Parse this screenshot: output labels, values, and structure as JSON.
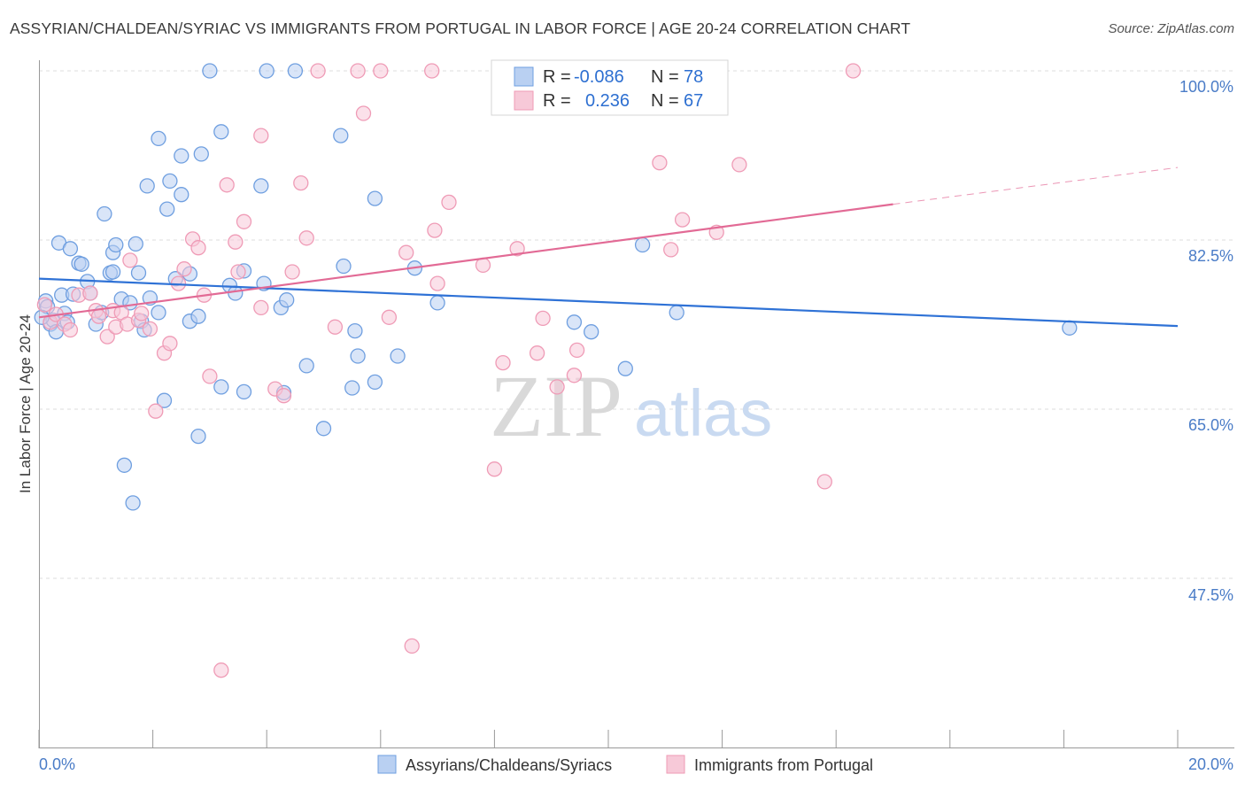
{
  "chart_data": {
    "type": "scatter",
    "title": "ASSYRIAN/CHALDEAN/SYRIAC VS IMMIGRANTS FROM PORTUGAL IN LABOR FORCE | AGE 20-24 CORRELATION CHART",
    "source": "Source: ZipAtlas.com",
    "ylabel": "In Labor Force | Age 20-24",
    "xlim": [
      0,
      20
    ],
    "ylim": [
      30,
      101.5
    ],
    "x_tick_labels": [
      "0.0%",
      "20.0%"
    ],
    "y_ticks": [
      {
        "value": 100.0,
        "label": "100.0%"
      },
      {
        "value": 82.5,
        "label": "82.5%"
      },
      {
        "value": 65.0,
        "label": "65.0%"
      },
      {
        "value": 47.5,
        "label": "47.5%"
      }
    ],
    "watermark": {
      "zip": "ZIP",
      "atlas": "atlas"
    },
    "series": [
      {
        "name": "Assyrians/Chaldeans/Syriacs",
        "color": "#6f9fe0",
        "fill": "#b9d0f2",
        "line_color": "#2f72d6",
        "r_label": "R =",
        "r_value": "-0.086",
        "n_label": "N =",
        "n_value": "78",
        "trend": {
          "x0": 0,
          "y0": 78.5,
          "x1": 20,
          "y1": 73.6
        },
        "points": [
          [
            0.12,
            76.2
          ],
          [
            0.15,
            75.6
          ],
          [
            0.2,
            73.8
          ],
          [
            0.25,
            74.2
          ],
          [
            0.3,
            73.0
          ],
          [
            0.35,
            82.2
          ],
          [
            0.4,
            76.8
          ],
          [
            0.45,
            74.9
          ],
          [
            0.5,
            74.0
          ],
          [
            0.55,
            81.6
          ],
          [
            0.7,
            80.1
          ],
          [
            0.75,
            80.0
          ],
          [
            0.85,
            78.2
          ],
          [
            0.9,
            77.0
          ],
          [
            1.0,
            73.8
          ],
          [
            1.1,
            75.0
          ],
          [
            1.15,
            85.2
          ],
          [
            1.25,
            79.1
          ],
          [
            1.3,
            81.2
          ],
          [
            1.3,
            79.2
          ],
          [
            1.35,
            82.0
          ],
          [
            1.45,
            76.4
          ],
          [
            1.5,
            59.2
          ],
          [
            1.6,
            76.0
          ],
          [
            1.65,
            55.3
          ],
          [
            1.7,
            82.1
          ],
          [
            1.75,
            79.1
          ],
          [
            1.8,
            74.1
          ],
          [
            1.85,
            73.2
          ],
          [
            1.9,
            88.1
          ],
          [
            2.1,
            75.0
          ],
          [
            2.1,
            93.0
          ],
          [
            2.2,
            65.9
          ],
          [
            2.25,
            85.7
          ],
          [
            2.3,
            88.6
          ],
          [
            2.4,
            78.5
          ],
          [
            2.5,
            91.2
          ],
          [
            2.5,
            87.2
          ],
          [
            2.65,
            79.0
          ],
          [
            2.65,
            74.1
          ],
          [
            2.8,
            74.6
          ],
          [
            2.8,
            62.2
          ],
          [
            2.85,
            91.4
          ],
          [
            3.0,
            100.0
          ],
          [
            3.2,
            93.7
          ],
          [
            3.2,
            67.3
          ],
          [
            3.35,
            77.8
          ],
          [
            3.45,
            77.0
          ],
          [
            3.6,
            66.8
          ],
          [
            3.9,
            88.1
          ],
          [
            3.95,
            78.0
          ],
          [
            4.0,
            100.0
          ],
          [
            4.25,
            75.5
          ],
          [
            4.3,
            66.7
          ],
          [
            4.35,
            76.3
          ],
          [
            4.5,
            100.0
          ],
          [
            4.7,
            69.5
          ],
          [
            5.0,
            63.0
          ],
          [
            5.3,
            93.3
          ],
          [
            5.35,
            79.8
          ],
          [
            5.5,
            67.2
          ],
          [
            5.55,
            73.1
          ],
          [
            5.6,
            70.5
          ],
          [
            5.9,
            67.8
          ],
          [
            5.9,
            86.8
          ],
          [
            6.3,
            70.5
          ],
          [
            6.6,
            79.6
          ],
          [
            7.0,
            76.0
          ],
          [
            9.4,
            74.0
          ],
          [
            9.7,
            73.0
          ],
          [
            10.3,
            69.2
          ],
          [
            10.6,
            82.0
          ],
          [
            11.2,
            75.0
          ],
          [
            18.1,
            73.4
          ],
          [
            0.05,
            74.5
          ],
          [
            0.6,
            76.9
          ],
          [
            1.95,
            76.5
          ],
          [
            3.6,
            79.3
          ]
        ]
      },
      {
        "name": "Immigrants from Portugal",
        "color": "#ef9bb6",
        "fill": "#f7c9d8",
        "line_color": "#e26a95",
        "r_label": "R =",
        "r_value": "0.236",
        "n_label": "N =",
        "n_value": "67",
        "trend": {
          "x0": 0,
          "y0": 74.5,
          "x1": 15,
          "y1": 86.2
        },
        "trend_dashed": {
          "x0": 15,
          "y0": 86.2,
          "x1": 20,
          "y1": 90.0
        },
        "points": [
          [
            0.1,
            75.8
          ],
          [
            0.2,
            74.0
          ],
          [
            0.3,
            74.8
          ],
          [
            0.45,
            73.8
          ],
          [
            0.55,
            73.2
          ],
          [
            0.7,
            76.8
          ],
          [
            0.9,
            77.0
          ],
          [
            1.0,
            75.2
          ],
          [
            1.05,
            74.6
          ],
          [
            1.2,
            72.5
          ],
          [
            1.3,
            75.2
          ],
          [
            1.35,
            73.5
          ],
          [
            1.45,
            75.0
          ],
          [
            1.55,
            73.8
          ],
          [
            1.6,
            80.4
          ],
          [
            1.75,
            74.2
          ],
          [
            1.8,
            74.9
          ],
          [
            1.95,
            73.3
          ],
          [
            2.05,
            64.8
          ],
          [
            2.2,
            70.8
          ],
          [
            2.3,
            71.8
          ],
          [
            2.45,
            78.0
          ],
          [
            2.55,
            79.5
          ],
          [
            2.7,
            82.6
          ],
          [
            2.8,
            81.7
          ],
          [
            2.9,
            76.8
          ],
          [
            3.0,
            68.4
          ],
          [
            3.2,
            38.0
          ],
          [
            3.3,
            88.2
          ],
          [
            3.45,
            82.3
          ],
          [
            3.5,
            79.2
          ],
          [
            3.6,
            84.4
          ],
          [
            3.9,
            93.3
          ],
          [
            3.9,
            75.5
          ],
          [
            4.15,
            67.1
          ],
          [
            4.3,
            66.4
          ],
          [
            4.45,
            79.2
          ],
          [
            4.6,
            88.4
          ],
          [
            4.7,
            82.7
          ],
          [
            4.9,
            100.0
          ],
          [
            5.2,
            73.5
          ],
          [
            5.6,
            100.0
          ],
          [
            5.7,
            95.6
          ],
          [
            6.0,
            100.0
          ],
          [
            6.15,
            74.5
          ],
          [
            6.45,
            81.2
          ],
          [
            6.55,
            40.5
          ],
          [
            6.9,
            100.0
          ],
          [
            6.95,
            83.5
          ],
          [
            7.0,
            78.0
          ],
          [
            7.2,
            86.4
          ],
          [
            7.8,
            79.9
          ],
          [
            8.0,
            58.8
          ],
          [
            8.15,
            69.8
          ],
          [
            8.4,
            81.6
          ],
          [
            8.75,
            70.8
          ],
          [
            8.85,
            74.4
          ],
          [
            9.1,
            67.3
          ],
          [
            9.4,
            68.5
          ],
          [
            9.45,
            71.1
          ],
          [
            10.9,
            90.5
          ],
          [
            11.1,
            81.5
          ],
          [
            11.3,
            84.6
          ],
          [
            11.9,
            83.3
          ],
          [
            12.3,
            90.3
          ],
          [
            13.8,
            57.5
          ],
          [
            14.3,
            100.0
          ]
        ]
      }
    ]
  }
}
